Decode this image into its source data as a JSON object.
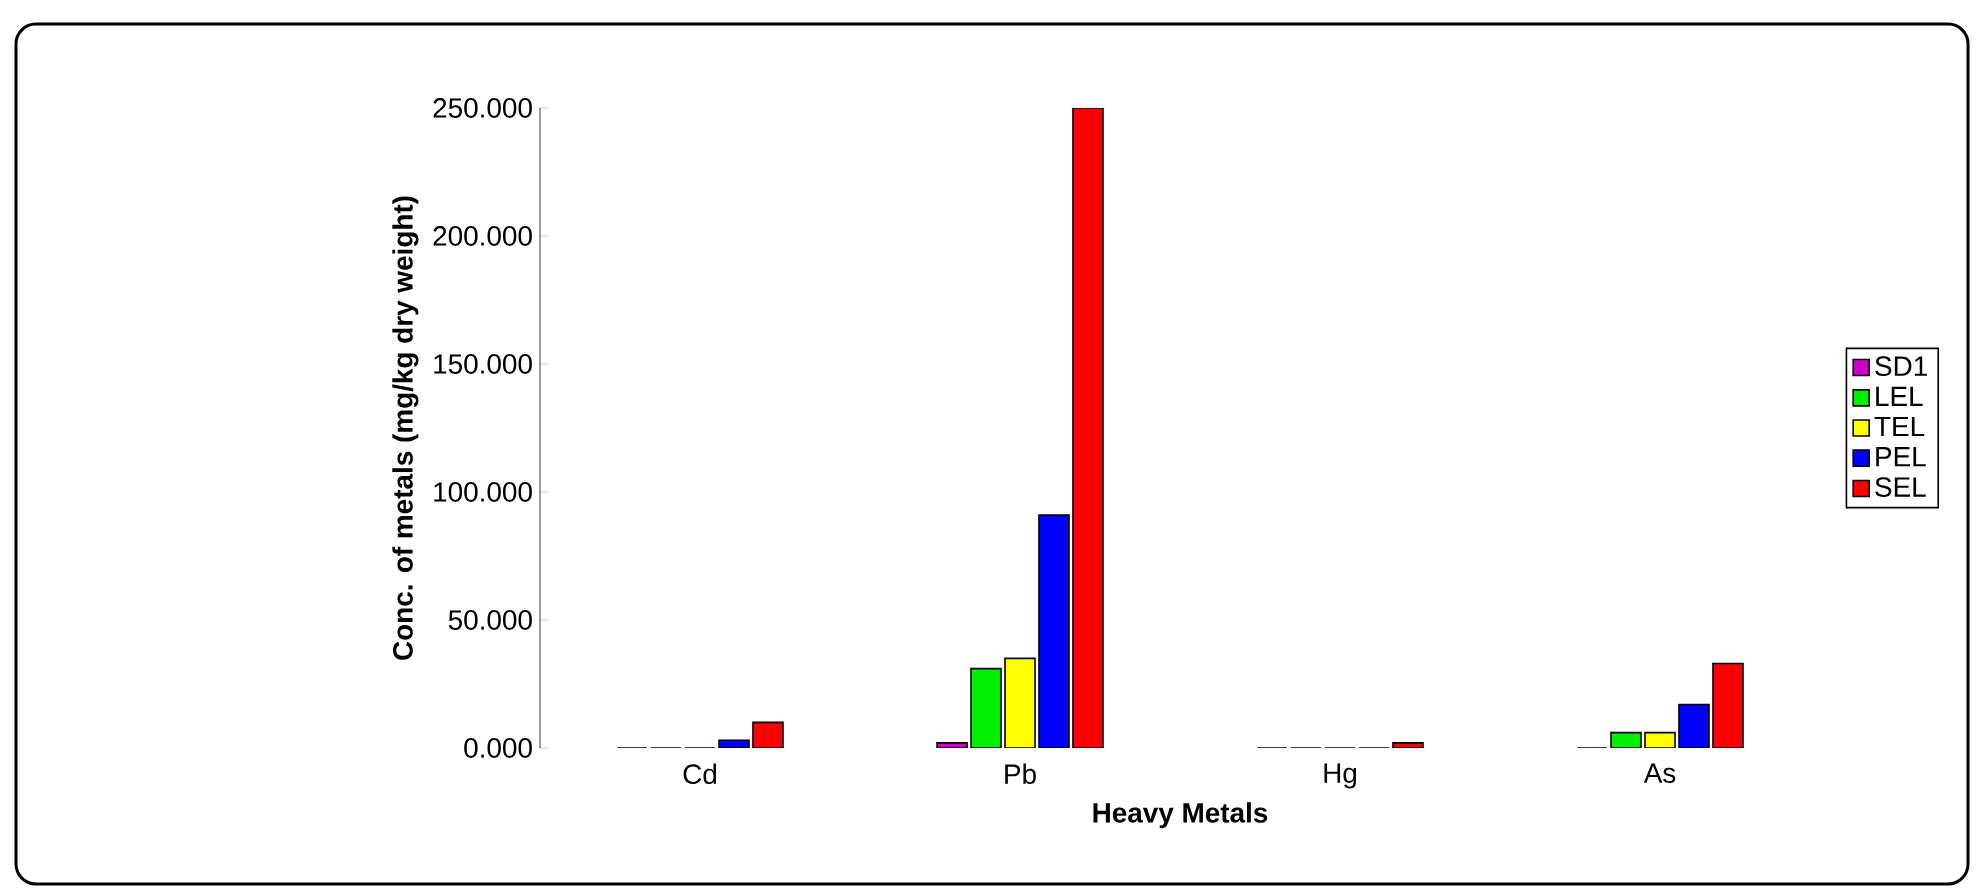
{
  "chart_data": {
    "type": "bar",
    "xlabel": "Heavy Metals",
    "ylabel": "Conc. of metals (mg/kg dry weight)",
    "categories": [
      "Cd",
      "Pb",
      "Hg",
      "As"
    ],
    "series": [
      {
        "name": "SD1",
        "color": "#cc00cc",
        "values": [
          0,
          2,
          0,
          0
        ]
      },
      {
        "name": "LEL",
        "color": "#00ee00",
        "values": [
          0,
          31,
          0,
          6
        ]
      },
      {
        "name": "TEL",
        "color": "#ffff00",
        "values": [
          0,
          35,
          0,
          6
        ]
      },
      {
        "name": "PEL",
        "color": "#0000ff",
        "values": [
          3,
          91,
          0,
          17
        ]
      },
      {
        "name": "SEL",
        "color": "#ff0000",
        "values": [
          10,
          250,
          2,
          33
        ]
      }
    ],
    "ylim": [
      0,
      250
    ],
    "yticks": [
      {
        "value": 0,
        "label": "0.000"
      },
      {
        "value": 50,
        "label": "50.000"
      },
      {
        "value": 100,
        "label": "100.000"
      },
      {
        "value": 150,
        "label": "150.000"
      },
      {
        "value": 200,
        "label": "200.000"
      },
      {
        "value": 250,
        "label": "250.000"
      }
    ],
    "grid": false,
    "legend": "right"
  }
}
